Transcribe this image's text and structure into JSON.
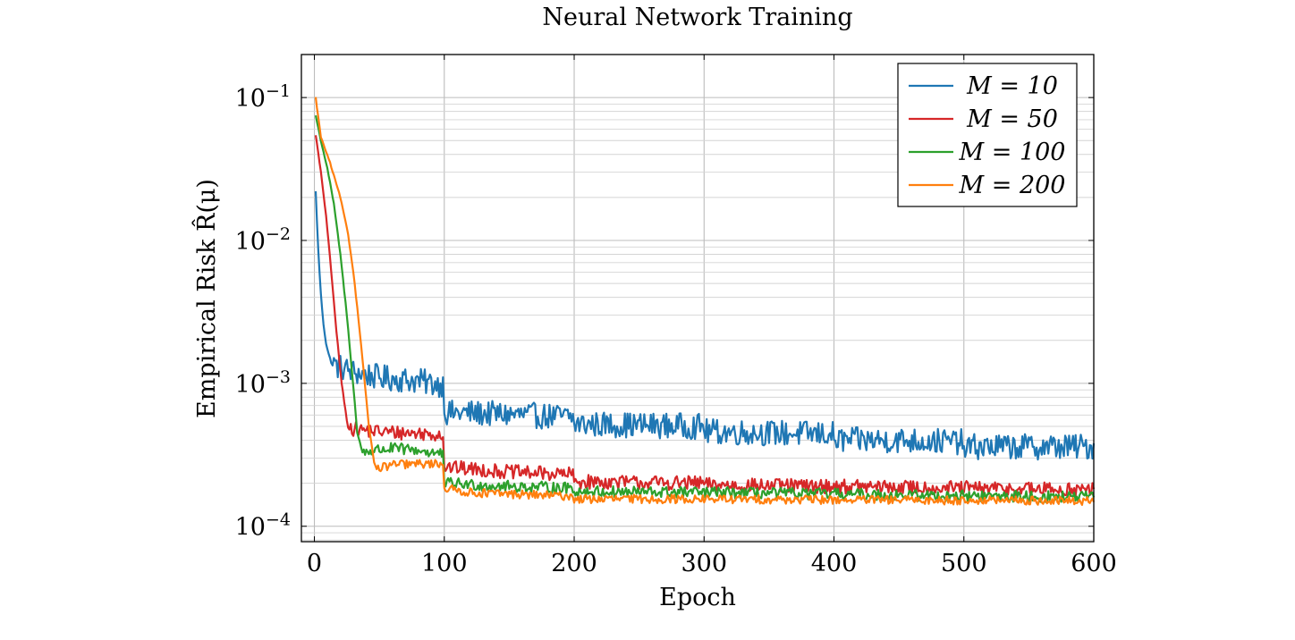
{
  "chart_data": {
    "type": "line",
    "title": "Neural Network Training",
    "xlabel": "Epoch",
    "ylabel": "Empirical Risk R̂(μ)",
    "xlim": [
      -10,
      600
    ],
    "ylim": [
      7.8e-05,
      0.2
    ],
    "yscale": "log",
    "grid": true,
    "legend_position": "top-right",
    "x_ticks": [
      0,
      100,
      200,
      300,
      400,
      500,
      600
    ],
    "x_tick_labels": [
      "0",
      "100",
      "200",
      "300",
      "400",
      "500",
      "600"
    ],
    "y_tick_labels": [
      {
        "base": "10",
        "exp": "−1",
        "value": 0.1
      },
      {
        "base": "10",
        "exp": "−2",
        "value": 0.01
      },
      {
        "base": "10",
        "exp": "−3",
        "value": 0.001
      },
      {
        "base": "10",
        "exp": "−4",
        "value": 0.0001
      }
    ],
    "series": [
      {
        "name": "M = 10",
        "legend_label": "M = 10",
        "color": "#1f77b4",
        "points": [
          [
            1,
            0.022
          ],
          [
            3,
            0.0085
          ],
          [
            5,
            0.0042
          ],
          [
            7,
            0.0026
          ],
          [
            9,
            0.0019
          ],
          [
            11,
            0.0016
          ],
          [
            13,
            0.0014
          ],
          [
            15,
            0.00135
          ],
          [
            20,
            0.0013
          ],
          [
            30,
            0.0012
          ],
          [
            40,
            0.00115
          ],
          [
            50,
            0.0011
          ],
          [
            60,
            0.00108
          ],
          [
            70,
            0.00106
          ],
          [
            80,
            0.00104
          ],
          [
            90,
            0.001
          ],
          [
            99,
            0.00098
          ],
          [
            100,
            0.00062
          ],
          [
            120,
            0.00062
          ],
          [
            140,
            0.00061
          ],
          [
            160,
            0.0006
          ],
          [
            180,
            0.00059
          ],
          [
            199,
            0.00058
          ],
          [
            200,
            0.00052
          ],
          [
            250,
            0.00051
          ],
          [
            299,
            0.0005
          ],
          [
            300,
            0.00046
          ],
          [
            350,
            0.00045
          ],
          [
            399,
            0.00044
          ],
          [
            400,
            0.0004
          ],
          [
            450,
            0.0004
          ],
          [
            499,
            0.00039
          ],
          [
            500,
            0.00036
          ],
          [
            550,
            0.00036
          ],
          [
            600,
            0.00036
          ]
        ],
        "noise": 0.09
      },
      {
        "name": "M = 50",
        "legend_label": "M = 50",
        "color": "#d62728",
        "points": [
          [
            1,
            0.055
          ],
          [
            5,
            0.03
          ],
          [
            9,
            0.015
          ],
          [
            13,
            0.006
          ],
          [
            17,
            0.0023
          ],
          [
            21,
            0.001
          ],
          [
            25,
            0.00055
          ],
          [
            30,
            0.00048
          ],
          [
            50,
            0.00046
          ],
          [
            70,
            0.00045
          ],
          [
            99,
            0.00044
          ],
          [
            100,
            0.00026
          ],
          [
            150,
            0.00024
          ],
          [
            199,
            0.00023
          ],
          [
            200,
            0.000205
          ],
          [
            299,
            0.0002
          ],
          [
            300,
            0.000195
          ],
          [
            400,
            0.00019
          ],
          [
            500,
            0.000185
          ],
          [
            600,
            0.00018
          ]
        ],
        "noise": 0.05
      },
      {
        "name": "M = 100",
        "legend_label": "M = 100",
        "color": "#2ca02c",
        "points": [
          [
            1,
            0.075
          ],
          [
            5,
            0.05
          ],
          [
            10,
            0.032
          ],
          [
            15,
            0.018
          ],
          [
            20,
            0.008
          ],
          [
            25,
            0.003
          ],
          [
            30,
            0.00095
          ],
          [
            33,
            0.00045
          ],
          [
            37,
            0.00033
          ],
          [
            45,
            0.00034
          ],
          [
            60,
            0.00035
          ],
          [
            80,
            0.00034
          ],
          [
            99,
            0.00032
          ],
          [
            100,
            0.0002
          ],
          [
            150,
            0.00019
          ],
          [
            199,
            0.000185
          ],
          [
            200,
            0.000175
          ],
          [
            300,
            0.000172
          ],
          [
            400,
            0.000168
          ],
          [
            500,
            0.000163
          ],
          [
            600,
            0.00016
          ]
        ],
        "noise": 0.04
      },
      {
        "name": "M = 200",
        "legend_label": "M = 200",
        "color": "#ff7f0e",
        "points": [
          [
            1,
            0.1
          ],
          [
            5,
            0.053
          ],
          [
            12,
            0.035
          ],
          [
            20,
            0.02
          ],
          [
            26,
            0.011
          ],
          [
            30,
            0.006
          ],
          [
            34,
            0.0028
          ],
          [
            38,
            0.0012
          ],
          [
            42,
            0.0005
          ],
          [
            46,
            0.00028
          ],
          [
            48,
            0.00025
          ],
          [
            60,
            0.00027
          ],
          [
            99,
            0.000275
          ],
          [
            100,
            0.000185
          ],
          [
            120,
            0.000172
          ],
          [
            199,
            0.000162
          ],
          [
            200,
            0.000155
          ],
          [
            300,
            0.000155
          ],
          [
            400,
            0.000153
          ],
          [
            500,
            0.000152
          ],
          [
            600,
            0.00015
          ]
        ],
        "noise": 0.03
      }
    ]
  }
}
